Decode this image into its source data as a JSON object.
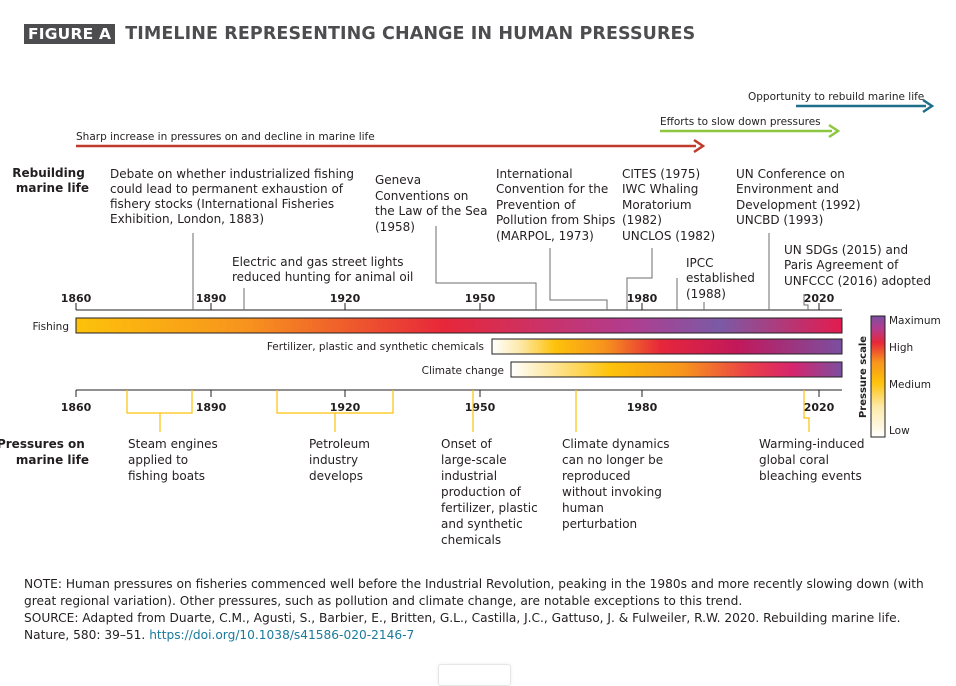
{
  "header": {
    "figure_label": "FIGURE A",
    "title": "TIMELINE REPRESENTING CHANGE IN HUMAN PRESSURES"
  },
  "arrows": {
    "sharp_increase": "Sharp increase in pressures on and decline in marine life",
    "efforts": "Efforts to slow down pressures",
    "opportunity": "Opportunity to rebuild marine life",
    "colors": {
      "sharp_increase": "#c0392b",
      "efforts": "#8dc63f",
      "opportunity": "#1f6e8c"
    }
  },
  "rows": {
    "rebuilding": [
      "Rebuilding",
      "marine life"
    ],
    "pressures": [
      "Pressures on",
      "marine life"
    ]
  },
  "ticks": [
    "1860",
    "1890",
    "1920",
    "1950",
    "1980",
    "2020"
  ],
  "bars": {
    "fishing": "Fishing",
    "fertilizer": "Fertilizer, plastic and synthetic chemicals",
    "climate": "Climate change"
  },
  "pressure_scale": {
    "title": "Pressure scale",
    "maximum": "Maximum",
    "high": "High",
    "medium": "Medium",
    "low": "Low"
  },
  "top_events": {
    "debate": [
      "Debate on whether industrialized fishing",
      "could lead to permanent exhaustion of",
      "fishery stocks (International Fisheries",
      "Exhibition, London, 1883)"
    ],
    "lights": [
      "Electric and gas street lights",
      "reduced hunting for animal oil"
    ],
    "geneva": [
      "Geneva",
      "Conventions on",
      "the Law of the Sea",
      "(1958)"
    ],
    "marpol": [
      "International",
      "Convention for the",
      "Prevention of",
      "Pollution from Ships",
      "(MARPOL, 1973)"
    ],
    "cites": [
      "CITES (1975)",
      "IWC Whaling",
      "Moratorium",
      "(1982)",
      "UNCLOS (1982)"
    ],
    "ipcc": [
      "IPCC",
      "established",
      "(1988)"
    ],
    "unced": [
      "UN Conference on",
      "Environment and",
      "Development (1992)",
      "UNCBD (1993)"
    ],
    "sdgs": [
      "UN SDGs (2015) and",
      "Paris Agreement of",
      "UNFCCC (2016) adopted"
    ]
  },
  "bottom_events": {
    "steam": [
      "Steam engines",
      "applied to",
      "fishing boats"
    ],
    "petroleum": [
      "Petroleum",
      "industry",
      "develops"
    ],
    "onset": [
      "Onset of",
      "large-scale",
      "industrial",
      "production of",
      "fertilizer, plastic",
      "and synthetic",
      "chemicals"
    ],
    "climate_dyn": [
      "Climate dynamics",
      "can no longer be",
      "reproduced",
      "without invoking",
      "human",
      "perturbation"
    ],
    "coral": [
      "Warming-induced",
      "global coral",
      "bleaching events"
    ]
  },
  "note": {
    "note_text": "NOTE: Human pressures on fisheries commenced well before the Industrial Revolution, peaking in the 1980s and more recently slowing down (with great regional variation). Other pressures, such as pollution and climate change, are notable exceptions to this trend.",
    "source_text": "SOURCE: Adapted from Duarte, C.M., Agusti, S., Barbier, E., Britten, G.L., Castilla, J.C., Gattuso, J. & Fulweiler, R.W. 2020. Rebuilding marine life. Nature, 580: 39–51. ",
    "doi": "https://doi.org/10.1038/s41586-020-2146-7"
  }
}
